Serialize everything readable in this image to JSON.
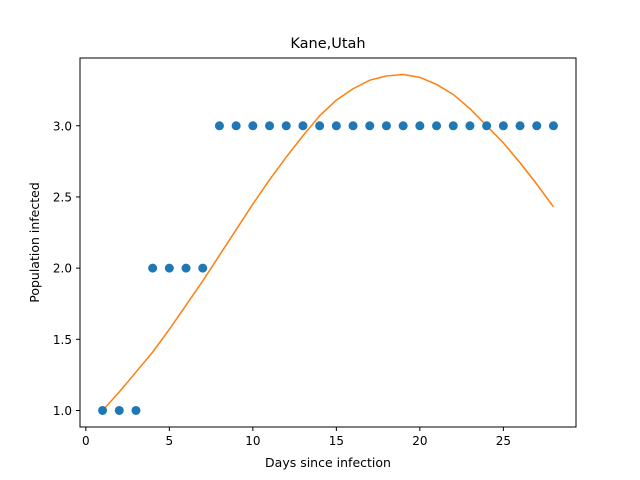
{
  "chart_data": {
    "type": "scatter",
    "title": "Kane,Utah",
    "xlabel": "Days since infection",
    "ylabel": "Population infected",
    "xlim": [
      -0.35,
      29.35
    ],
    "ylim": [
      0.884,
      3.476
    ],
    "xticks": [
      0,
      5,
      10,
      15,
      20,
      25
    ],
    "yticks": [
      1.0,
      1.5,
      2.0,
      2.5,
      3.0
    ],
    "ytick_labels": [
      "1.0",
      "1.5",
      "2.0",
      "2.5",
      "3.0"
    ],
    "grid": false,
    "colors": {
      "observed": "#1f77b4",
      "fit": "#ff7f0e"
    },
    "series": [
      {
        "kind": "scatter",
        "x": [
          1,
          2,
          3,
          4,
          5,
          6,
          7,
          8,
          9,
          10,
          11,
          12,
          13,
          14,
          15,
          16,
          17,
          18,
          19,
          20,
          21,
          22,
          23,
          24,
          25,
          26,
          27,
          28
        ],
        "values": [
          1,
          1,
          1,
          2,
          2,
          2,
          2,
          3,
          3,
          3,
          3,
          3,
          3,
          3,
          3,
          3,
          3,
          3,
          3,
          3,
          3,
          3,
          3,
          3,
          3,
          3,
          3,
          3
        ]
      },
      {
        "kind": "line",
        "x": [
          1,
          2,
          3,
          4,
          5,
          6,
          7,
          8,
          9,
          10,
          11,
          12,
          13,
          14,
          15,
          16,
          17,
          18,
          19,
          20,
          21,
          22,
          23,
          24,
          25,
          26,
          27,
          28
        ],
        "values": [
          1.0,
          1.13,
          1.27,
          1.41,
          1.57,
          1.74,
          1.91,
          2.09,
          2.27,
          2.45,
          2.62,
          2.78,
          2.93,
          3.07,
          3.18,
          3.26,
          3.32,
          3.35,
          3.36,
          3.34,
          3.29,
          3.22,
          3.12,
          3.0,
          2.88,
          2.74,
          2.59,
          2.43
        ]
      }
    ]
  }
}
